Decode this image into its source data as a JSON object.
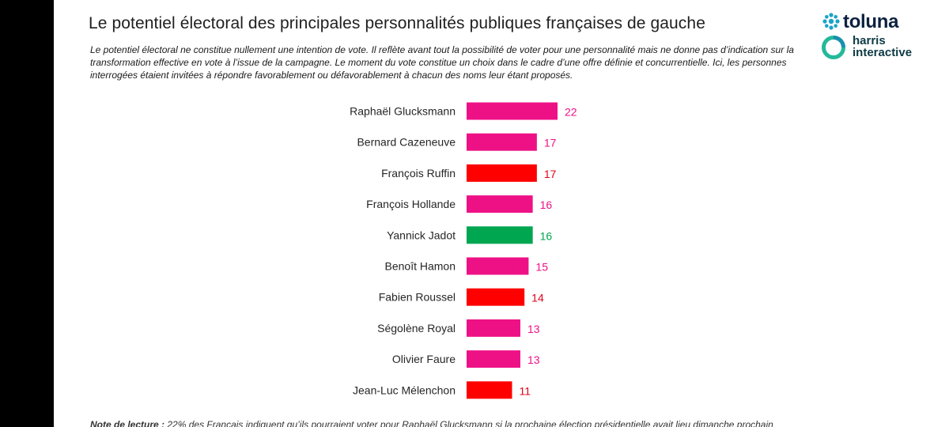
{
  "title": "Le potentiel électoral des principales personnalités publiques françaises de gauche",
  "subtitle": "Le potentiel électoral ne constitue nullement une intention de vote. Il reflète avant tout la possibilité de voter pour une personnalité mais ne donne pas d’indication sur la transformation effective en vote à l’issue de la campagne. Le moment du vote constitue un choix dans le cadre d’une offre définie et concurrentielle. Ici, les personnes interrogées étaient invitées à répondre favorablement ou défavorablement à chacun des noms leur étant proposés.",
  "logos": {
    "toluna": "toluna",
    "harris_line1": "harris",
    "harris_line2": "interactive",
    "toluna_color": "#1aa3c8",
    "harris_color": "#23b99a"
  },
  "note": {
    "label": "Note de lecture :",
    "text": " 22% des Français indiquent qu’ils pourraient voter pour Raphaël Glucksmann si la prochaine élection présidentielle avait lieu dimanche prochain"
  },
  "chart_data": {
    "type": "bar",
    "orientation": "horizontal",
    "title": "Le potentiel électoral des principales personnalités publiques françaises de gauche",
    "xlabel": "",
    "ylabel": "",
    "xlim": [
      0,
      22
    ],
    "grid": false,
    "categories": [
      "Raphaël Glucksmann",
      "Bernard Cazeneuve",
      "François Ruffin",
      "François Hollande",
      "Yannick Jadot",
      "Benoît Hamon",
      "Fabien Roussel",
      "Ségolène Royal",
      "Olivier Faure",
      "Jean-Luc Mélenchon"
    ],
    "values": [
      22,
      17,
      17,
      16,
      16,
      15,
      14,
      13,
      13,
      11
    ],
    "colors": [
      "#ee1186",
      "#ee1186",
      "#ff0000",
      "#ee1186",
      "#00a650",
      "#ee1186",
      "#ff0000",
      "#ee1186",
      "#ee1186",
      "#ff0000"
    ],
    "label_colors": [
      "#ee1186",
      "#ee1186",
      "#e0001a",
      "#ee1186",
      "#00a650",
      "#ee1186",
      "#e0001a",
      "#ee1186",
      "#ee1186",
      "#e0001a"
    ]
  }
}
